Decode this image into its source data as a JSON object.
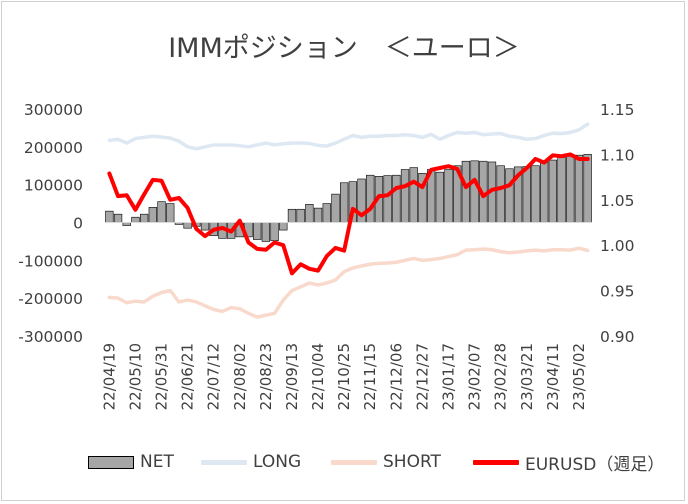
{
  "chart_data": {
    "type": "bar+line",
    "title": "IMMポジション　＜ユーロ＞",
    "x_tick_labels": [
      "22/04/19",
      "22/05/10",
      "22/05/31",
      "22/06/21",
      "22/07/12",
      "22/08/02",
      "22/08/23",
      "22/09/13",
      "22/10/04",
      "22/10/25",
      "22/11/15",
      "22/12/06",
      "22/12/27",
      "23/01/17",
      "23/02/07",
      "23/02/28",
      "23/03/21",
      "23/04/11",
      "23/05/02"
    ],
    "y_left": {
      "ylim": [
        -300000,
        300000
      ],
      "ticks": [
        -300000,
        -200000,
        -100000,
        0,
        100000,
        200000,
        300000
      ]
    },
    "y_right": {
      "ylim": [
        0.9,
        1.15
      ],
      "ticks": [
        "0.90",
        "0.95",
        "1.00",
        "1.05",
        "1.10",
        "1.15"
      ]
    },
    "series": [
      {
        "name": "NET",
        "type": "bar",
        "axis": "left",
        "color": "#a6a6a6",
        "values": [
          30000,
          22000,
          -8000,
          14000,
          22000,
          40000,
          55000,
          50000,
          -5000,
          -15000,
          -10000,
          -20000,
          -35000,
          -42000,
          -42000,
          -38000,
          -38000,
          -45000,
          -50000,
          -48000,
          -20000,
          35000,
          35000,
          48000,
          38000,
          50000,
          75000,
          105000,
          108000,
          115000,
          125000,
          122000,
          124000,
          125000,
          140000,
          145000,
          130000,
          140000,
          133000,
          140000,
          150000,
          162000,
          163000,
          162000,
          160000,
          150000,
          142000,
          147000,
          148000,
          150000,
          160000,
          165000,
          172000,
          175000,
          178000,
          180000
        ]
      },
      {
        "name": "LONG",
        "type": "line",
        "axis": "left",
        "color": "#dde8f3",
        "values": [
          217000,
          220000,
          210000,
          222000,
          225000,
          228000,
          226000,
          223000,
          215000,
          200000,
          195000,
          200000,
          205000,
          205000,
          205000,
          203000,
          200000,
          205000,
          210000,
          205000,
          208000,
          210000,
          210000,
          209000,
          204000,
          202000,
          210000,
          220000,
          230000,
          225000,
          228000,
          228000,
          230000,
          230000,
          232000,
          230000,
          225000,
          233000,
          220000,
          230000,
          238000,
          236000,
          238000,
          232000,
          234000,
          235000,
          228000,
          225000,
          220000,
          222000,
          230000,
          236000,
          235000,
          238000,
          245000,
          260000
        ]
      },
      {
        "name": "SHORT",
        "type": "line",
        "axis": "left",
        "color": "#f8d9cc",
        "values": [
          -198000,
          -200000,
          -212000,
          -208000,
          -210000,
          -195000,
          -185000,
          -180000,
          -210000,
          -205000,
          -210000,
          -220000,
          -230000,
          -235000,
          -225000,
          -228000,
          -240000,
          -250000,
          -245000,
          -240000,
          -205000,
          -180000,
          -170000,
          -160000,
          -165000,
          -160000,
          -152000,
          -130000,
          -120000,
          -115000,
          -110000,
          -108000,
          -107000,
          -105000,
          -100000,
          -95000,
          -100000,
          -98000,
          -95000,
          -90000,
          -85000,
          -73000,
          -72000,
          -70000,
          -72000,
          -77000,
          -80000,
          -78000,
          -75000,
          -73000,
          -75000,
          -72000,
          -72000,
          -73000,
          -68000,
          -74000
        ]
      },
      {
        "name": "EURUSD（週足）",
        "type": "line",
        "axis": "right",
        "color": "#ff0000",
        "values": [
          1.079,
          1.054,
          1.055,
          1.039,
          1.056,
          1.072,
          1.071,
          1.05,
          1.052,
          1.041,
          1.018,
          1.01,
          1.017,
          1.019,
          1.015,
          1.027,
          1.003,
          0.996,
          0.995,
          1.003,
          1.0,
          0.969,
          0.979,
          0.974,
          0.972,
          0.988,
          0.997,
          0.994,
          1.04,
          1.033,
          1.04,
          1.054,
          1.055,
          1.063,
          1.065,
          1.07,
          1.064,
          1.083,
          1.085,
          1.087,
          1.084,
          1.064,
          1.072,
          1.054,
          1.061,
          1.063,
          1.066,
          1.077,
          1.085,
          1.095,
          1.091,
          1.099,
          1.098,
          1.1,
          1.095,
          1.095
        ]
      }
    ],
    "legend_position": "bottom",
    "grid": false
  }
}
